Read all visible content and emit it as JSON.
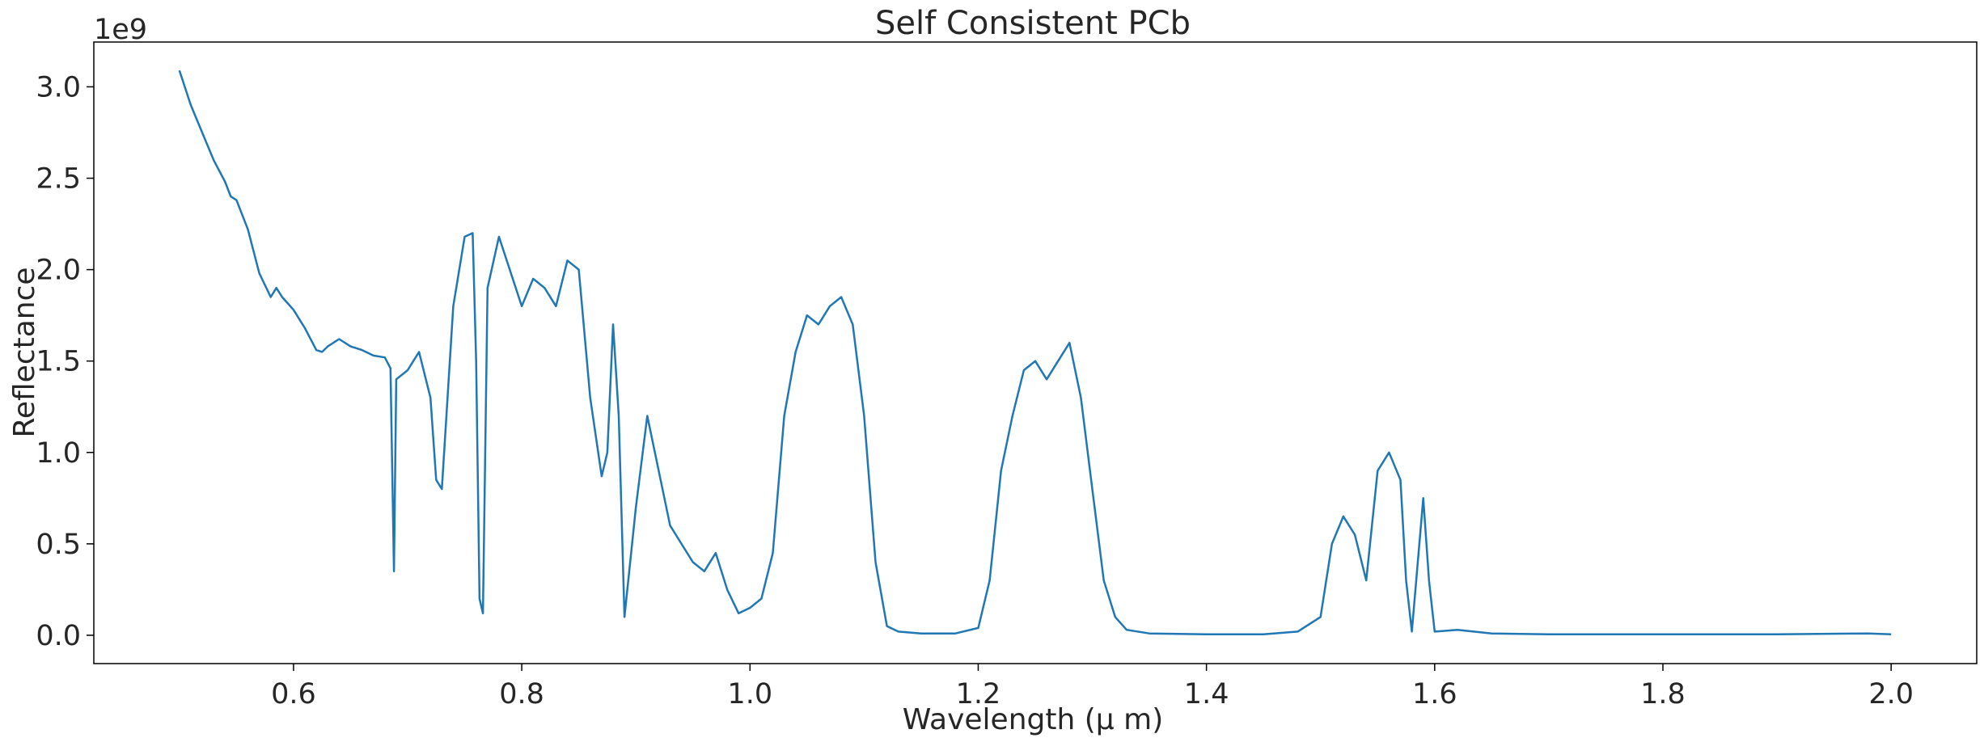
{
  "chart_data": {
    "type": "line",
    "title": "Self Consistent PCb",
    "xlabel": "Wavelength ($\\mu$ m)",
    "xlabel_display": "Wavelength (μ m)",
    "ylabel": "Reflectance",
    "y_offset_label": "1e9",
    "xlim": [
      0.425,
      2.075
    ],
    "ylim": [
      -0.155,
      3.245
    ],
    "y_scale_factor": 1000000000,
    "x_ticks": [
      0.6,
      0.8,
      1.0,
      1.2,
      1.4,
      1.6,
      1.8,
      2.0
    ],
    "x_tick_labels": [
      "0.6",
      "0.8",
      "1.0",
      "1.2",
      "1.4",
      "1.6",
      "1.8",
      "2.0"
    ],
    "y_ticks": [
      0.0,
      0.5,
      1.0,
      1.5,
      2.0,
      2.5,
      3.0
    ],
    "y_tick_labels": [
      "0.0",
      "0.5",
      "1.0",
      "1.5",
      "2.0",
      "2.5",
      "3.0"
    ],
    "grid": false,
    "legend": "none",
    "series": [
      {
        "color": "#1f77b4",
        "x": [
          0.5,
          0.51,
          0.52,
          0.53,
          0.54,
          0.545,
          0.55,
          0.56,
          0.57,
          0.58,
          0.585,
          0.59,
          0.6,
          0.61,
          0.62,
          0.625,
          0.63,
          0.64,
          0.65,
          0.66,
          0.67,
          0.68,
          0.685,
          0.688,
          0.69,
          0.7,
          0.71,
          0.72,
          0.725,
          0.73,
          0.74,
          0.75,
          0.757,
          0.76,
          0.763,
          0.766,
          0.77,
          0.78,
          0.8,
          0.81,
          0.82,
          0.83,
          0.84,
          0.85,
          0.86,
          0.87,
          0.875,
          0.88,
          0.885,
          0.89,
          0.9,
          0.91,
          0.92,
          0.93,
          0.94,
          0.95,
          0.96,
          0.97,
          0.98,
          0.99,
          1.0,
          1.01,
          1.02,
          1.03,
          1.04,
          1.05,
          1.06,
          1.07,
          1.08,
          1.09,
          1.1,
          1.11,
          1.12,
          1.13,
          1.15,
          1.18,
          1.2,
          1.21,
          1.22,
          1.23,
          1.24,
          1.25,
          1.26,
          1.27,
          1.28,
          1.29,
          1.3,
          1.31,
          1.32,
          1.33,
          1.35,
          1.4,
          1.45,
          1.48,
          1.5,
          1.51,
          1.52,
          1.53,
          1.54,
          1.55,
          1.56,
          1.57,
          1.575,
          1.58,
          1.59,
          1.595,
          1.6,
          1.62,
          1.65,
          1.7,
          1.8,
          1.9,
          1.98,
          2.0
        ],
        "y": [
          3.09,
          2.9,
          2.75,
          2.6,
          2.48,
          2.4,
          2.38,
          2.22,
          1.98,
          1.85,
          1.9,
          1.85,
          1.78,
          1.68,
          1.56,
          1.55,
          1.58,
          1.62,
          1.58,
          1.56,
          1.53,
          1.52,
          1.46,
          0.35,
          1.4,
          1.45,
          1.55,
          1.3,
          0.85,
          0.8,
          1.8,
          2.18,
          2.2,
          1.5,
          0.2,
          0.12,
          1.9,
          2.18,
          1.8,
          1.95,
          1.9,
          1.8,
          2.05,
          2.0,
          1.3,
          0.87,
          1.0,
          1.7,
          1.2,
          0.1,
          0.7,
          1.2,
          0.9,
          0.6,
          0.5,
          0.4,
          0.35,
          0.45,
          0.25,
          0.12,
          0.15,
          0.2,
          0.45,
          1.2,
          1.55,
          1.75,
          1.7,
          1.8,
          1.85,
          1.7,
          1.2,
          0.4,
          0.05,
          0.02,
          0.01,
          0.01,
          0.04,
          0.3,
          0.9,
          1.2,
          1.45,
          1.5,
          1.4,
          1.5,
          1.6,
          1.3,
          0.8,
          0.3,
          0.1,
          0.03,
          0.01,
          0.005,
          0.005,
          0.02,
          0.1,
          0.5,
          0.65,
          0.55,
          0.3,
          0.9,
          1.0,
          0.85,
          0.3,
          0.02,
          0.75,
          0.3,
          0.02,
          0.03,
          0.01,
          0.005,
          0.005,
          0.005,
          0.01,
          0.005
        ]
      }
    ]
  }
}
